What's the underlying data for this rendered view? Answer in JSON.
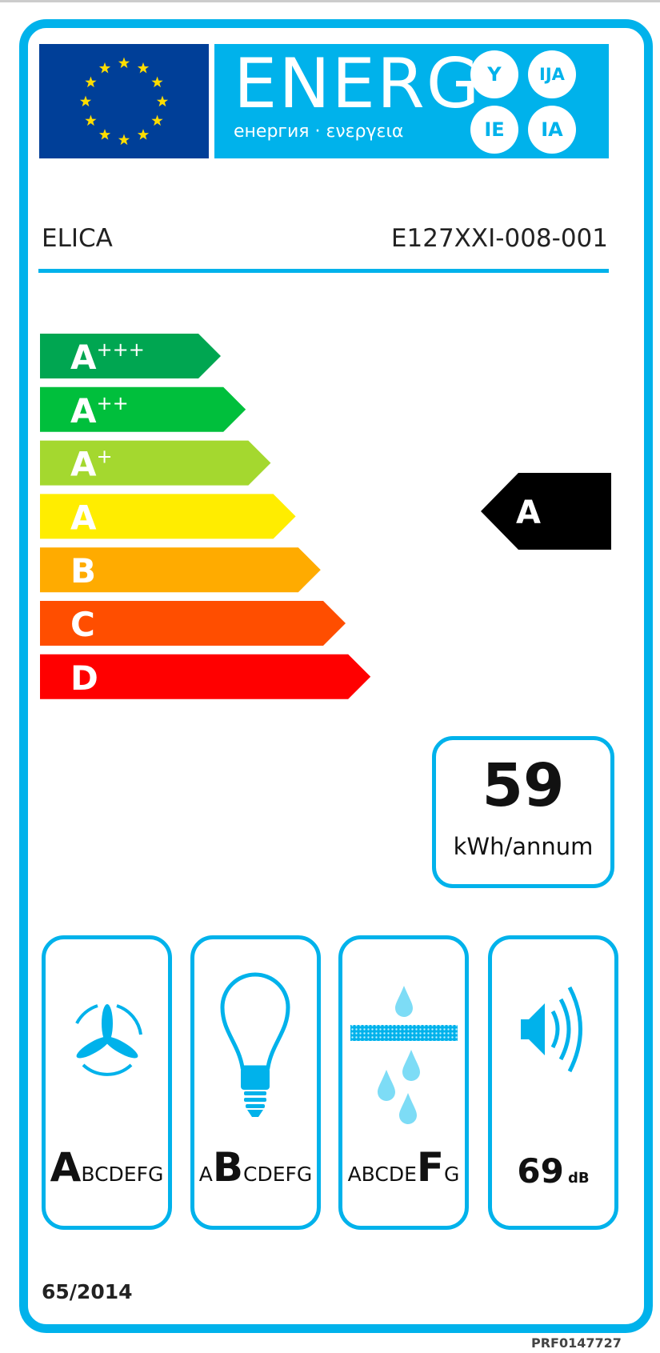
{
  "header": {
    "energy_word": "ENERG",
    "energy_subtitle": "енергия · ενεργεια",
    "language_suffixes": [
      "Y",
      "IJA",
      "IE",
      "IA"
    ],
    "colors": {
      "label_blue": "#00b2eb",
      "eu_blue": "#003f98",
      "eu_star": "#ffdd00"
    }
  },
  "supplier": {
    "brand": "ELICA",
    "model": "E127XXI-008-001"
  },
  "energy_scale": {
    "classes": [
      {
        "label": "A",
        "sup": "+++",
        "color": "#00a651"
      },
      {
        "label": "A",
        "sup": "++",
        "color": "#00bf3c"
      },
      {
        "label": "A",
        "sup": "+",
        "color": "#a4d82f"
      },
      {
        "label": "A",
        "sup": "",
        "color": "#ffed00"
      },
      {
        "label": "B",
        "sup": "",
        "color": "#ffab00"
      },
      {
        "label": "C",
        "sup": "",
        "color": "#ff4e00"
      },
      {
        "label": "D",
        "sup": "",
        "color": "#ff0000"
      }
    ],
    "rating": "A",
    "rating_color": "#000000"
  },
  "consumption": {
    "value": "59",
    "unit": "kWh/annum"
  },
  "pictograms": [
    {
      "icon": "fan-icon",
      "prefix": "",
      "highlight": "A",
      "suffix": "BCDEFG"
    },
    {
      "icon": "light-bulb-icon",
      "prefix": "A",
      "highlight": "B",
      "suffix": "CDEFG"
    },
    {
      "icon": "grease-filter-icon",
      "prefix": "ABCDE",
      "highlight": "F",
      "suffix": "G"
    },
    {
      "icon": "noise-speaker-icon",
      "value": "69",
      "unit": "dB"
    }
  ],
  "footer": {
    "regulation": "65/2014",
    "reference": "PRF0147727"
  }
}
